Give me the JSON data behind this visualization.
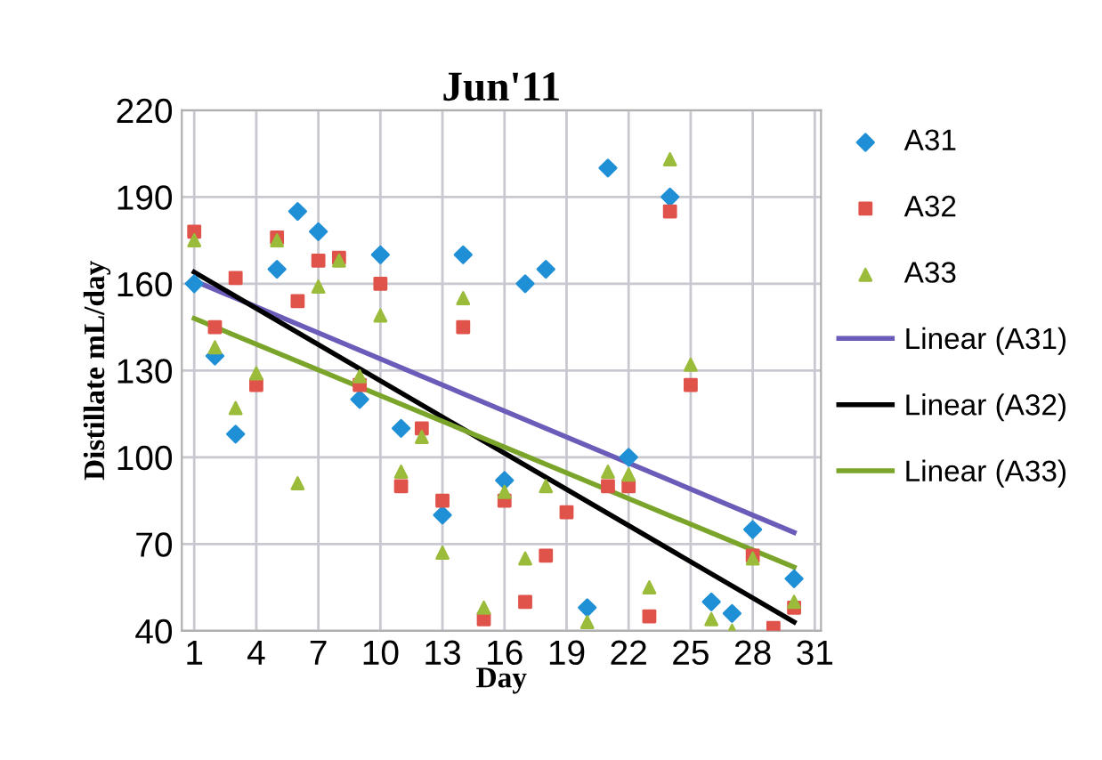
{
  "chart_data": {
    "type": "scatter",
    "title": "Jun'11",
    "xlabel": "Day",
    "ylabel": "Distillate mL/day",
    "x": [
      1,
      2,
      3,
      4,
      5,
      6,
      7,
      8,
      9,
      10,
      11,
      12,
      13,
      14,
      15,
      16,
      17,
      18,
      19,
      20,
      21,
      22,
      23,
      24,
      25,
      26,
      27,
      28,
      29,
      30
    ],
    "series": [
      {
        "name": "A31",
        "color": "#1f8fd6",
        "marker": "diamond",
        "values": [
          160,
          135,
          108,
          null,
          165,
          185,
          178,
          null,
          120,
          170,
          110,
          null,
          80,
          170,
          null,
          92,
          160,
          165,
          null,
          48,
          200,
          100,
          null,
          190,
          null,
          50,
          46,
          75,
          null,
          58
        ]
      },
      {
        "name": "A32",
        "color": "#e0534a",
        "marker": "square",
        "values": [
          178,
          145,
          162,
          125,
          176,
          154,
          168,
          169,
          125,
          160,
          90,
          110,
          85,
          145,
          44,
          85,
          50,
          66,
          81,
          null,
          90,
          90,
          45,
          185,
          125,
          null,
          null,
          66,
          41,
          48
        ]
      },
      {
        "name": "A33",
        "color": "#9bbb3a",
        "marker": "triangle",
        "values": [
          175,
          138,
          117,
          129,
          175,
          91,
          159,
          168,
          128,
          149,
          95,
          107,
          67,
          155,
          48,
          88,
          65,
          90,
          null,
          43,
          95,
          94,
          55,
          203,
          132,
          44,
          40,
          65,
          null,
          50
        ]
      },
      {
        "name": "Linear (A31)",
        "type": "line",
        "color": "#6a5cb8",
        "values": [
          161,
          null,
          null,
          null,
          null,
          null,
          null,
          null,
          null,
          null,
          null,
          null,
          null,
          null,
          null,
          null,
          null,
          null,
          null,
          null,
          null,
          null,
          null,
          null,
          null,
          null,
          null,
          null,
          null,
          74
        ]
      },
      {
        "name": "Linear (A32)",
        "type": "line",
        "color": "#000000",
        "values": [
          164,
          null,
          null,
          null,
          null,
          null,
          null,
          null,
          null,
          null,
          null,
          null,
          null,
          null,
          null,
          null,
          null,
          null,
          null,
          null,
          null,
          null,
          null,
          null,
          null,
          null,
          null,
          null,
          null,
          43
        ]
      },
      {
        "name": "Linear (A33)",
        "type": "line",
        "color": "#7aa52a",
        "values": [
          148,
          null,
          null,
          null,
          null,
          null,
          null,
          null,
          null,
          null,
          null,
          null,
          null,
          null,
          null,
          null,
          null,
          null,
          null,
          null,
          null,
          null,
          null,
          null,
          null,
          null,
          null,
          null,
          null,
          62
        ]
      }
    ],
    "xlim": [
      0.4,
      31.3
    ],
    "ylim": [
      40,
      220
    ],
    "xticks": [
      1,
      4,
      7,
      10,
      13,
      16,
      19,
      22,
      25,
      28,
      31
    ],
    "yticks": [
      40,
      70,
      100,
      130,
      160,
      190,
      220
    ],
    "grid": true,
    "legend": "right"
  }
}
